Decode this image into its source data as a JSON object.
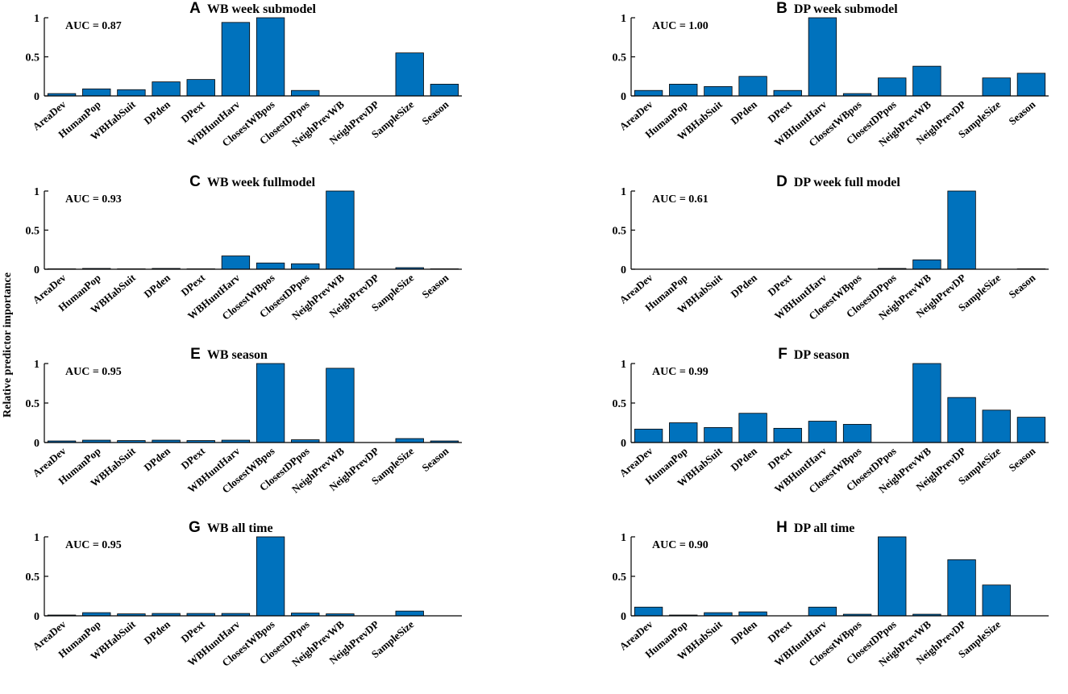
{
  "figure": {
    "ylabel": "Relative predictor importance",
    "bar_color": "#0072BD"
  },
  "chart_data": [
    {
      "type": "bar",
      "id": "A",
      "letter": "A",
      "title": "WB week submodel",
      "auc": "AUC = 0.87",
      "categories": [
        "AreaDev",
        "HumanPop",
        "WBHabSuit",
        "DPden",
        "DPext",
        "WBHuntHarv",
        "ClosestWBpos",
        "ClosestDPpos",
        "NeighPrevWB",
        "NeighPrevDP",
        "SampleSize",
        "Season"
      ],
      "values": [
        0.03,
        0.09,
        0.08,
        0.18,
        0.21,
        0.94,
        1.0,
        0.07,
        0.0,
        0.0,
        0.55,
        0.15
      ],
      "ylim": [
        0,
        1
      ],
      "yticks": [
        "0",
        "0.5",
        "1"
      ],
      "ylabel": ""
    },
    {
      "type": "bar",
      "id": "B",
      "letter": "B",
      "title": "DP week submodel",
      "auc": "AUC = 1.00",
      "categories": [
        "AreaDev",
        "HumanPop",
        "WBHabSuit",
        "DPden",
        "DPext",
        "WBHuntHarv",
        "ClosestWBpos",
        "ClosestDPpos",
        "NeighPrevWB",
        "NeighPrevDP",
        "SampleSize",
        "Season"
      ],
      "values": [
        0.07,
        0.15,
        0.12,
        0.25,
        0.07,
        1.0,
        0.03,
        0.23,
        0.38,
        0.0,
        0.23,
        0.29
      ],
      "ylim": [
        0,
        1
      ],
      "yticks": [
        "0",
        "0.5",
        "1"
      ],
      "ylabel": ""
    },
    {
      "type": "bar",
      "id": "C",
      "letter": "C",
      "title": "WB week fullmodel",
      "auc": "AUC = 0.93",
      "categories": [
        "AreaDev",
        "HumanPop",
        "WBHabSuit",
        "DPden",
        "DPext",
        "WBHuntHarv",
        "ClosestWBpos",
        "ClosestDPpos",
        "NeighPrevWB",
        "NeighPrevDP",
        "SampleSize",
        "Season"
      ],
      "values": [
        0.005,
        0.01,
        0.005,
        0.01,
        0.005,
        0.17,
        0.08,
        0.07,
        1.0,
        0.0,
        0.02,
        0.005
      ],
      "ylim": [
        0,
        1
      ],
      "yticks": [
        "0",
        "0.5",
        "1"
      ],
      "ylabel": ""
    },
    {
      "type": "bar",
      "id": "D",
      "letter": "D",
      "title": "DP week full model",
      "auc": "AUC = 0.61",
      "categories": [
        "AreaDev",
        "HumanPop",
        "WBHabSuit",
        "DPden",
        "DPext",
        "WBHuntHarv",
        "ClosestWBpos",
        "ClosestDPpos",
        "NeighPrevWB",
        "NeighPrevDP",
        "SampleSize",
        "Season"
      ],
      "values": [
        0.0,
        0.0,
        0.0,
        0.0,
        0.0,
        0.0,
        0.0,
        0.01,
        0.12,
        1.0,
        0.0,
        0.005
      ],
      "ylim": [
        0,
        1
      ],
      "yticks": [
        "0",
        "0.5",
        "1"
      ],
      "ylabel": ""
    },
    {
      "type": "bar",
      "id": "E",
      "letter": "E",
      "title": "WB season",
      "auc": "AUC = 0.95",
      "categories": [
        "AreaDev",
        "HumanPop",
        "WBHabSuit",
        "DPden",
        "DPext",
        "WBHuntHarv",
        "ClosestWBpos",
        "ClosestDPpos",
        "NeighPrevWB",
        "NeighPrevDP",
        "SampleSize",
        "Season"
      ],
      "values": [
        0.02,
        0.03,
        0.025,
        0.03,
        0.025,
        0.03,
        1.0,
        0.035,
        0.94,
        0.0,
        0.05,
        0.02
      ],
      "ylim": [
        0,
        1
      ],
      "yticks": [
        "0",
        "0.5",
        "1"
      ],
      "ylabel": ""
    },
    {
      "type": "bar",
      "id": "F",
      "letter": "F",
      "title": "DP season",
      "auc": "AUC = 0.99",
      "categories": [
        "AreaDev",
        "HumanPop",
        "WBHabSuit",
        "DPden",
        "DPext",
        "WBHuntHarv",
        "ClosestWBpos",
        "ClosestDPpos",
        "NeighPrevWB",
        "NeighPrevDP",
        "SampleSize",
        "Season"
      ],
      "values": [
        0.17,
        0.25,
        0.19,
        0.37,
        0.18,
        0.27,
        0.23,
        0.0,
        1.0,
        0.57,
        0.41,
        0.32
      ],
      "ylim": [
        0,
        1
      ],
      "yticks": [
        "0",
        "0.5",
        "1"
      ],
      "ylabel": ""
    },
    {
      "type": "bar",
      "id": "G",
      "letter": "G",
      "title": "WB all time",
      "auc": "AUC = 0.95",
      "categories": [
        "AreaDev",
        "HumanPop",
        "WBHabSuit",
        "DPden",
        "DPext",
        "WBHuntHarv",
        "ClosestWBpos",
        "ClosestDPpos",
        "NeighPrevWB",
        "NeighPrevDP",
        "SampleSize"
      ],
      "values": [
        0.01,
        0.04,
        0.025,
        0.03,
        0.03,
        0.03,
        1.0,
        0.035,
        0.025,
        0.0,
        0.06
      ],
      "ylim": [
        0,
        1
      ],
      "yticks": [
        "0",
        "0.5",
        "1"
      ],
      "ylabel": ""
    },
    {
      "type": "bar",
      "id": "H",
      "letter": "H",
      "title": "DP all time",
      "auc": "AUC = 0.90",
      "categories": [
        "AreaDev",
        "HumanPop",
        "WBHabSuit",
        "DPden",
        "DPext",
        "WBHuntHarv",
        "ClosestWBpos",
        "ClosestDPpos",
        "NeighPrevWB",
        "NeighPrevDP",
        "SampleSize"
      ],
      "values": [
        0.11,
        0.01,
        0.04,
        0.05,
        0.0,
        0.11,
        0.02,
        1.0,
        0.02,
        0.71,
        0.39
      ],
      "ylim": [
        0,
        1
      ],
      "yticks": [
        "0",
        "0.5",
        "1"
      ],
      "ylabel": ""
    }
  ]
}
